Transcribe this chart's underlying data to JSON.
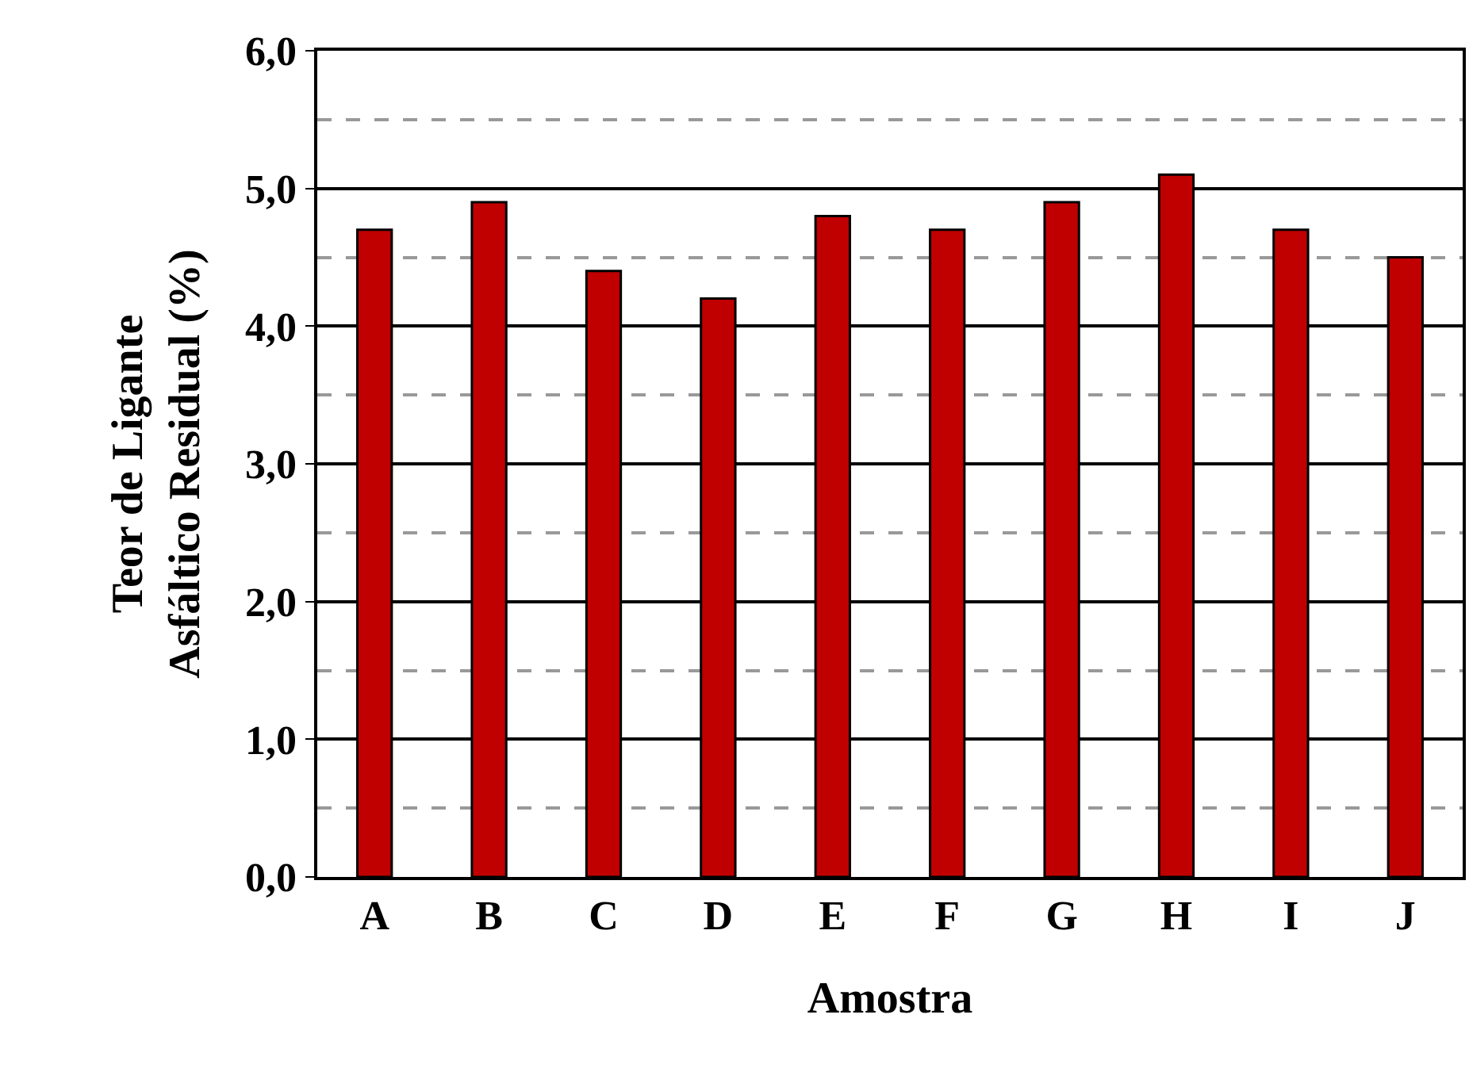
{
  "chart_data": {
    "type": "bar",
    "xlabel": "Amostra",
    "ylabel": "Teor de Ligante Asfáltico Residual (%)",
    "categories": [
      "A",
      "B",
      "C",
      "D",
      "E",
      "F",
      "G",
      "H",
      "I",
      "J"
    ],
    "values": [
      4.7,
      4.9,
      4.4,
      4.2,
      4.8,
      4.7,
      4.9,
      5.1,
      4.7,
      4.5
    ],
    "color": "#c00000",
    "ylim": [
      0,
      6
    ],
    "yticks": [
      {
        "value": 0,
        "label": "0,0"
      },
      {
        "value": 0.5,
        "label": null
      },
      {
        "value": 1,
        "label": "1,0"
      },
      {
        "value": 1.5,
        "label": null
      },
      {
        "value": 2,
        "label": "2,0"
      },
      {
        "value": 2.5,
        "label": null
      },
      {
        "value": 3,
        "label": "3,0"
      },
      {
        "value": 3.5,
        "label": null
      },
      {
        "value": 4,
        "label": "4,0"
      },
      {
        "value": 4.5,
        "label": null
      },
      {
        "value": 5,
        "label": "5,0"
      },
      {
        "value": 5.5,
        "label": null
      },
      {
        "value": 6,
        "label": "6,0"
      }
    ],
    "grid": "y",
    "legend": false
  }
}
